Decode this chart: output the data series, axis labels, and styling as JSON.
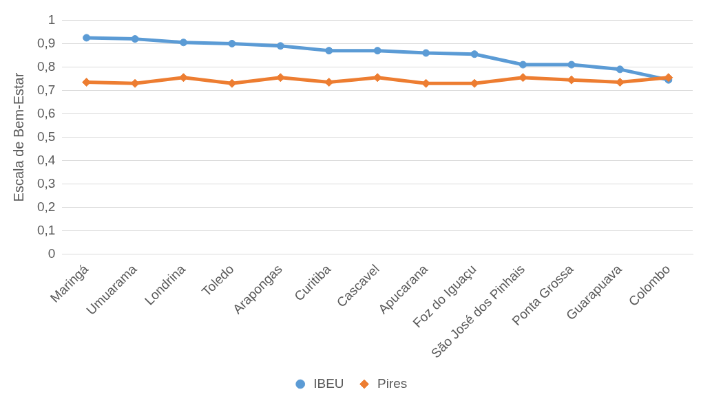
{
  "chart_data": {
    "type": "line",
    "ylabel": "Escala de Bem-Estar",
    "categories": [
      "Maringá",
      "Umuarama",
      "Londrina",
      "Toledo",
      "Arapongas",
      "Curitiba",
      "Cascavel",
      "Apucarana",
      "Foz do Iguaçu",
      "São José dos Pinhais",
      "Ponta Grossa",
      "Guarapuava",
      "Colombo"
    ],
    "series": [
      {
        "name": "IBEU",
        "color": "#5b9bd5",
        "marker": "circle",
        "values": [
          0.925,
          0.92,
          0.905,
          0.9,
          0.89,
          0.87,
          0.87,
          0.86,
          0.855,
          0.81,
          0.81,
          0.79,
          0.745
        ]
      },
      {
        "name": "Pires",
        "color": "#ed7d31",
        "marker": "diamond",
        "values": [
          0.735,
          0.73,
          0.755,
          0.73,
          0.755,
          0.735,
          0.755,
          0.73,
          0.73,
          0.755,
          0.745,
          0.735,
          0.755
        ]
      }
    ],
    "ylim": [
      0,
      1
    ],
    "yticks": [
      {
        "value": 0,
        "label": "0"
      },
      {
        "value": 0.1,
        "label": "0,1"
      },
      {
        "value": 0.2,
        "label": "0,2"
      },
      {
        "value": 0.3,
        "label": "0,3"
      },
      {
        "value": 0.4,
        "label": "0,4"
      },
      {
        "value": 0.5,
        "label": "0,5"
      },
      {
        "value": 0.6,
        "label": "0,6"
      },
      {
        "value": 0.7,
        "label": "0,7"
      },
      {
        "value": 0.8,
        "label": "0,8"
      },
      {
        "value": 0.9,
        "label": "0,9"
      },
      {
        "value": 1,
        "label": "1"
      }
    ],
    "grid": "y",
    "legend": "bottom",
    "line_style": "solid"
  }
}
